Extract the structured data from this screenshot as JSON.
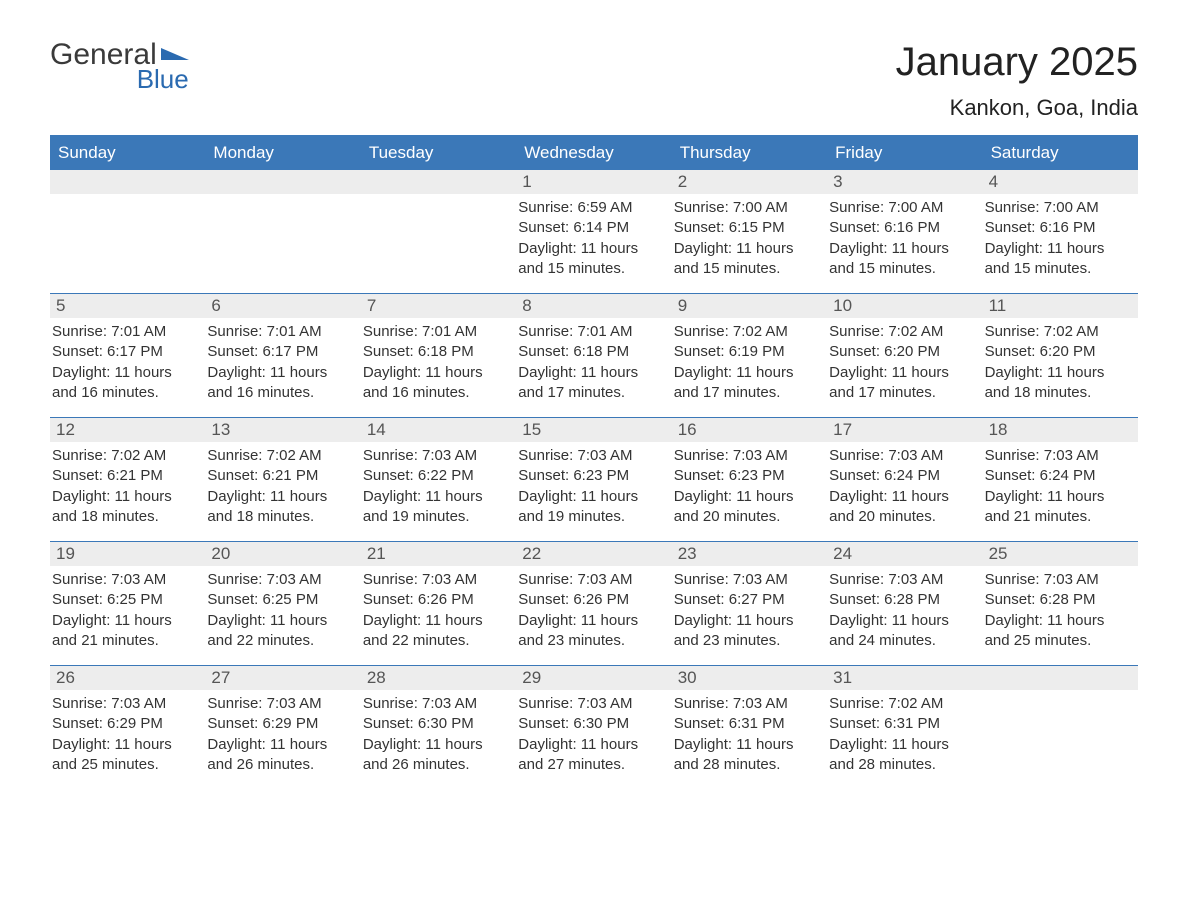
{
  "brand": {
    "word1": "General",
    "word2": "Blue",
    "color": "#2a6ab0"
  },
  "header": {
    "title": "January 2025",
    "subtitle": "Kankon, Goa, India"
  },
  "calendar": {
    "day_headers": [
      "Sunday",
      "Monday",
      "Tuesday",
      "Wednesday",
      "Thursday",
      "Friday",
      "Saturday"
    ],
    "colors": {
      "header_bg": "#3b78b8",
      "header_fg": "#ffffff",
      "row_border": "#3b78b8",
      "daynum_bg": "#ededed",
      "text": "#333333"
    },
    "weeks": [
      [
        null,
        null,
        null,
        {
          "n": "1",
          "sunrise": "Sunrise: 6:59 AM",
          "sunset": "Sunset: 6:14 PM",
          "daylight": "Daylight: 11 hours and 15 minutes."
        },
        {
          "n": "2",
          "sunrise": "Sunrise: 7:00 AM",
          "sunset": "Sunset: 6:15 PM",
          "daylight": "Daylight: 11 hours and 15 minutes."
        },
        {
          "n": "3",
          "sunrise": "Sunrise: 7:00 AM",
          "sunset": "Sunset: 6:16 PM",
          "daylight": "Daylight: 11 hours and 15 minutes."
        },
        {
          "n": "4",
          "sunrise": "Sunrise: 7:00 AM",
          "sunset": "Sunset: 6:16 PM",
          "daylight": "Daylight: 11 hours and 15 minutes."
        }
      ],
      [
        {
          "n": "5",
          "sunrise": "Sunrise: 7:01 AM",
          "sunset": "Sunset: 6:17 PM",
          "daylight": "Daylight: 11 hours and 16 minutes."
        },
        {
          "n": "6",
          "sunrise": "Sunrise: 7:01 AM",
          "sunset": "Sunset: 6:17 PM",
          "daylight": "Daylight: 11 hours and 16 minutes."
        },
        {
          "n": "7",
          "sunrise": "Sunrise: 7:01 AM",
          "sunset": "Sunset: 6:18 PM",
          "daylight": "Daylight: 11 hours and 16 minutes."
        },
        {
          "n": "8",
          "sunrise": "Sunrise: 7:01 AM",
          "sunset": "Sunset: 6:18 PM",
          "daylight": "Daylight: 11 hours and 17 minutes."
        },
        {
          "n": "9",
          "sunrise": "Sunrise: 7:02 AM",
          "sunset": "Sunset: 6:19 PM",
          "daylight": "Daylight: 11 hours and 17 minutes."
        },
        {
          "n": "10",
          "sunrise": "Sunrise: 7:02 AM",
          "sunset": "Sunset: 6:20 PM",
          "daylight": "Daylight: 11 hours and 17 minutes."
        },
        {
          "n": "11",
          "sunrise": "Sunrise: 7:02 AM",
          "sunset": "Sunset: 6:20 PM",
          "daylight": "Daylight: 11 hours and 18 minutes."
        }
      ],
      [
        {
          "n": "12",
          "sunrise": "Sunrise: 7:02 AM",
          "sunset": "Sunset: 6:21 PM",
          "daylight": "Daylight: 11 hours and 18 minutes."
        },
        {
          "n": "13",
          "sunrise": "Sunrise: 7:02 AM",
          "sunset": "Sunset: 6:21 PM",
          "daylight": "Daylight: 11 hours and 18 minutes."
        },
        {
          "n": "14",
          "sunrise": "Sunrise: 7:03 AM",
          "sunset": "Sunset: 6:22 PM",
          "daylight": "Daylight: 11 hours and 19 minutes."
        },
        {
          "n": "15",
          "sunrise": "Sunrise: 7:03 AM",
          "sunset": "Sunset: 6:23 PM",
          "daylight": "Daylight: 11 hours and 19 minutes."
        },
        {
          "n": "16",
          "sunrise": "Sunrise: 7:03 AM",
          "sunset": "Sunset: 6:23 PM",
          "daylight": "Daylight: 11 hours and 20 minutes."
        },
        {
          "n": "17",
          "sunrise": "Sunrise: 7:03 AM",
          "sunset": "Sunset: 6:24 PM",
          "daylight": "Daylight: 11 hours and 20 minutes."
        },
        {
          "n": "18",
          "sunrise": "Sunrise: 7:03 AM",
          "sunset": "Sunset: 6:24 PM",
          "daylight": "Daylight: 11 hours and 21 minutes."
        }
      ],
      [
        {
          "n": "19",
          "sunrise": "Sunrise: 7:03 AM",
          "sunset": "Sunset: 6:25 PM",
          "daylight": "Daylight: 11 hours and 21 minutes."
        },
        {
          "n": "20",
          "sunrise": "Sunrise: 7:03 AM",
          "sunset": "Sunset: 6:25 PM",
          "daylight": "Daylight: 11 hours and 22 minutes."
        },
        {
          "n": "21",
          "sunrise": "Sunrise: 7:03 AM",
          "sunset": "Sunset: 6:26 PM",
          "daylight": "Daylight: 11 hours and 22 minutes."
        },
        {
          "n": "22",
          "sunrise": "Sunrise: 7:03 AM",
          "sunset": "Sunset: 6:26 PM",
          "daylight": "Daylight: 11 hours and 23 minutes."
        },
        {
          "n": "23",
          "sunrise": "Sunrise: 7:03 AM",
          "sunset": "Sunset: 6:27 PM",
          "daylight": "Daylight: 11 hours and 23 minutes."
        },
        {
          "n": "24",
          "sunrise": "Sunrise: 7:03 AM",
          "sunset": "Sunset: 6:28 PM",
          "daylight": "Daylight: 11 hours and 24 minutes."
        },
        {
          "n": "25",
          "sunrise": "Sunrise: 7:03 AM",
          "sunset": "Sunset: 6:28 PM",
          "daylight": "Daylight: 11 hours and 25 minutes."
        }
      ],
      [
        {
          "n": "26",
          "sunrise": "Sunrise: 7:03 AM",
          "sunset": "Sunset: 6:29 PM",
          "daylight": "Daylight: 11 hours and 25 minutes."
        },
        {
          "n": "27",
          "sunrise": "Sunrise: 7:03 AM",
          "sunset": "Sunset: 6:29 PM",
          "daylight": "Daylight: 11 hours and 26 minutes."
        },
        {
          "n": "28",
          "sunrise": "Sunrise: 7:03 AM",
          "sunset": "Sunset: 6:30 PM",
          "daylight": "Daylight: 11 hours and 26 minutes."
        },
        {
          "n": "29",
          "sunrise": "Sunrise: 7:03 AM",
          "sunset": "Sunset: 6:30 PM",
          "daylight": "Daylight: 11 hours and 27 minutes."
        },
        {
          "n": "30",
          "sunrise": "Sunrise: 7:03 AM",
          "sunset": "Sunset: 6:31 PM",
          "daylight": "Daylight: 11 hours and 28 minutes."
        },
        {
          "n": "31",
          "sunrise": "Sunrise: 7:02 AM",
          "sunset": "Sunset: 6:31 PM",
          "daylight": "Daylight: 11 hours and 28 minutes."
        },
        null
      ]
    ]
  }
}
